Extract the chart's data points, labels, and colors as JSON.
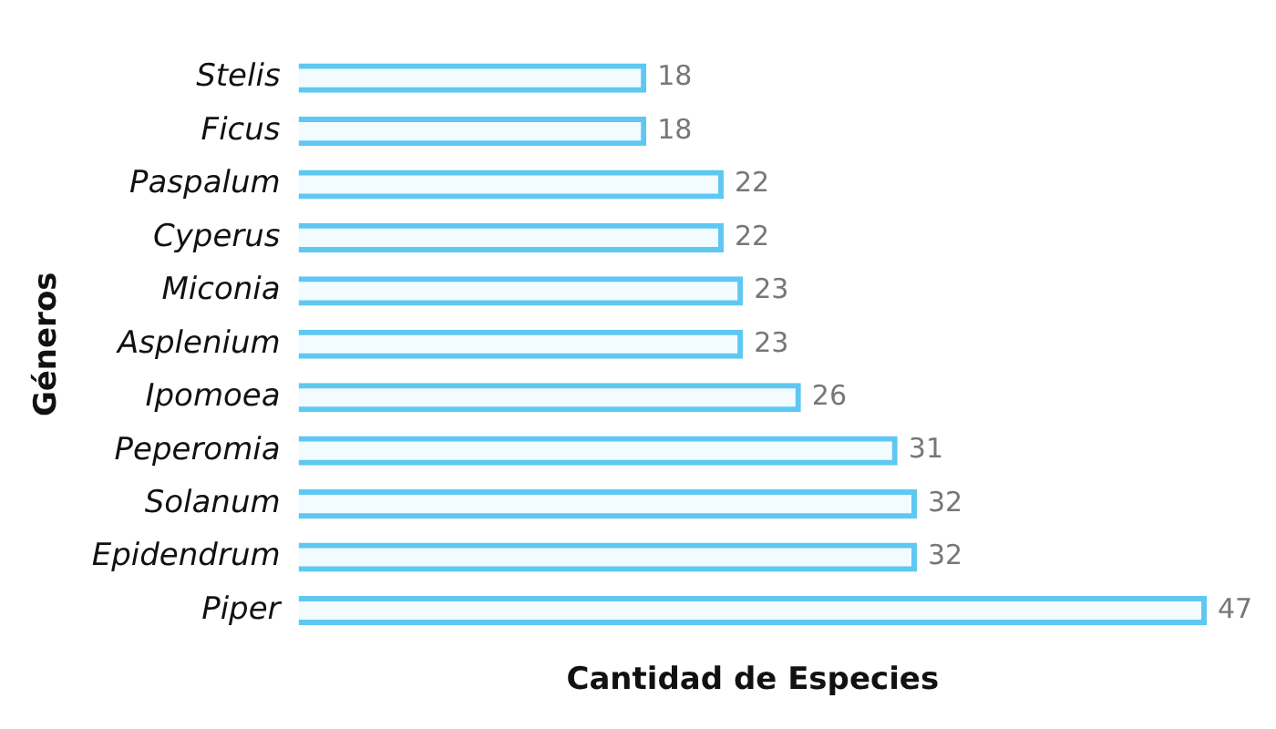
{
  "chart_data": {
    "type": "bar",
    "orientation": "horizontal",
    "xlabel": "Cantidad de Especies",
    "ylabel": "Géneros",
    "categories": [
      "Stelis",
      "Ficus",
      "Paspalum",
      "Cyperus",
      "Miconia",
      "Asplenium",
      "Ipomoea",
      "Peperomia",
      "Solanum",
      "Epidendrum",
      "Piper"
    ],
    "values": [
      18,
      18,
      22,
      22,
      23,
      23,
      26,
      31,
      32,
      32,
      47
    ],
    "color": "#5ec8f2",
    "xlim": [
      0,
      47
    ],
    "data_labels": true,
    "grid": false,
    "legend": false,
    "tick_labels": "y"
  }
}
